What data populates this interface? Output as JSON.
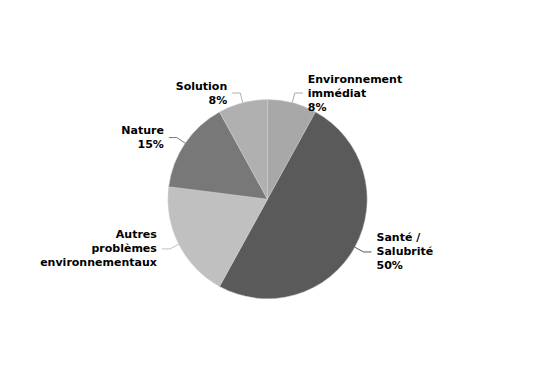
{
  "chart_data": {
    "type": "pie",
    "categories": [
      "Environnement\nimmédiat\n8%",
      "Santé /\nSalubrité\n50%",
      "Autres\nproblèmes\nenvironnementaux",
      "Nature\n15%",
      "Solution\n8%"
    ],
    "values": [
      8,
      50,
      19,
      15,
      8
    ],
    "colors": [
      "#a8a8a8",
      "#5a5a5a",
      "#c0c0c0",
      "#787878",
      "#b0b0b0"
    ]
  }
}
